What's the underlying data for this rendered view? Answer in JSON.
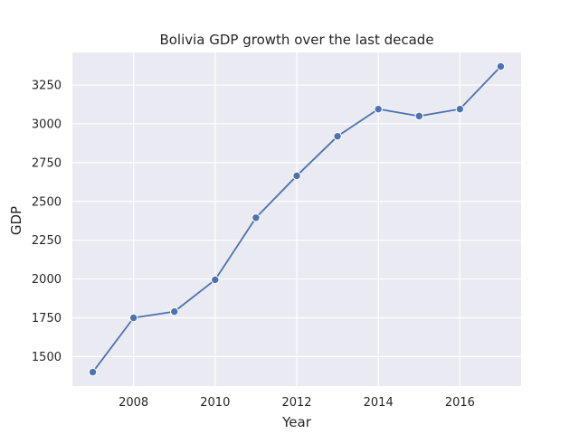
{
  "chart_data": {
    "type": "line",
    "title": "Bolivia GDP growth over the last decade",
    "xlabel": "Year",
    "ylabel": "GDP",
    "x": [
      2007,
      2008,
      2009,
      2010,
      2011,
      2012,
      2013,
      2014,
      2015,
      2016,
      2017
    ],
    "series": [
      {
        "values": [
          1400,
          1750,
          1790,
          1995,
          2395,
          2665,
          2920,
          3095,
          3050,
          3095,
          3370
        ]
      }
    ],
    "xlim": [
      2006.5,
      2017.5
    ],
    "ylim": [
      1310,
      3460
    ],
    "xticks": [
      2008,
      2010,
      2012,
      2014,
      2016
    ],
    "yticks": [
      1500,
      1750,
      2000,
      2250,
      2500,
      2750,
      3000,
      3250
    ],
    "grid": true,
    "colors": {
      "plot_background": "#EAEAF2",
      "grid": "#FFFFFF",
      "line": "#4C72B0"
    }
  }
}
